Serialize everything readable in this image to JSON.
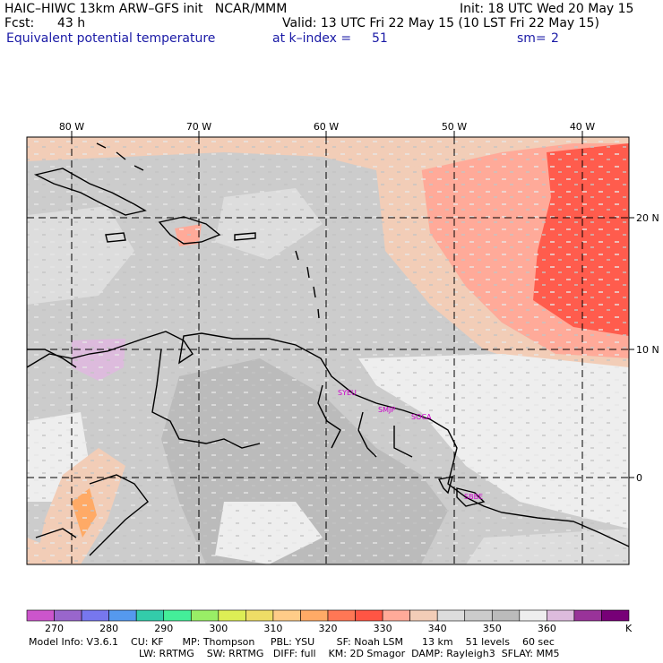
{
  "header": {
    "model_line": "HAIC–HIWC 13km ARW–GFS init   NCAR/MMM",
    "init_line": "Init: 18 UTC Wed 20 May 15",
    "fcst_label": "Fcst:",
    "fcst_value": "43 h",
    "valid_line": "Valid: 13 UTC Fri 22 May 15 (10 LST Fri 22 May 15)",
    "field_name": "Equivalent potential temperature",
    "level_label": "at k–index =",
    "level_value": "51",
    "smooth_label": "sm=",
    "smooth_value": "2"
  },
  "map": {
    "lon_labels": [
      "80 W",
      "70 W",
      "60 W",
      "50 W",
      "40 W"
    ],
    "lat_labels": [
      "20 N",
      "10 N",
      "0"
    ],
    "sites": [
      "SYEU",
      "SMJP",
      "SOCA",
      "SBBE"
    ]
  },
  "colorbar": {
    "tick_labels": [
      "270",
      "280",
      "290",
      "300",
      "310",
      "320",
      "330",
      "340",
      "350",
      "360"
    ],
    "units": "K",
    "colors": [
      "#cc55cc",
      "#9966cc",
      "#7777ee",
      "#5599ee",
      "#33ccaa",
      "#44ee99",
      "#99ee66",
      "#ddee55",
      "#eedd66",
      "#ffcc88",
      "#ffaa66",
      "#ff7755",
      "#ff5544",
      "#ffaa99",
      "#f2cdb7",
      "#dddddd",
      "#cccccc",
      "#bbbbbb",
      "#eeeeee",
      "#ddbbdd",
      "#993399",
      "#770077"
    ]
  },
  "footer": {
    "line1": "Model Info: V3.6.1    CU: KF      MP: Thompson     PBL: YSU       SF: Noah LSM      13 km    51 levels    60 sec",
    "line2": "LW: RRTMG    SW: RRTMG   DIFF: full    KM: 2D Smagor  DAMP: Rayleigh3  SFLAY: MM5"
  }
}
